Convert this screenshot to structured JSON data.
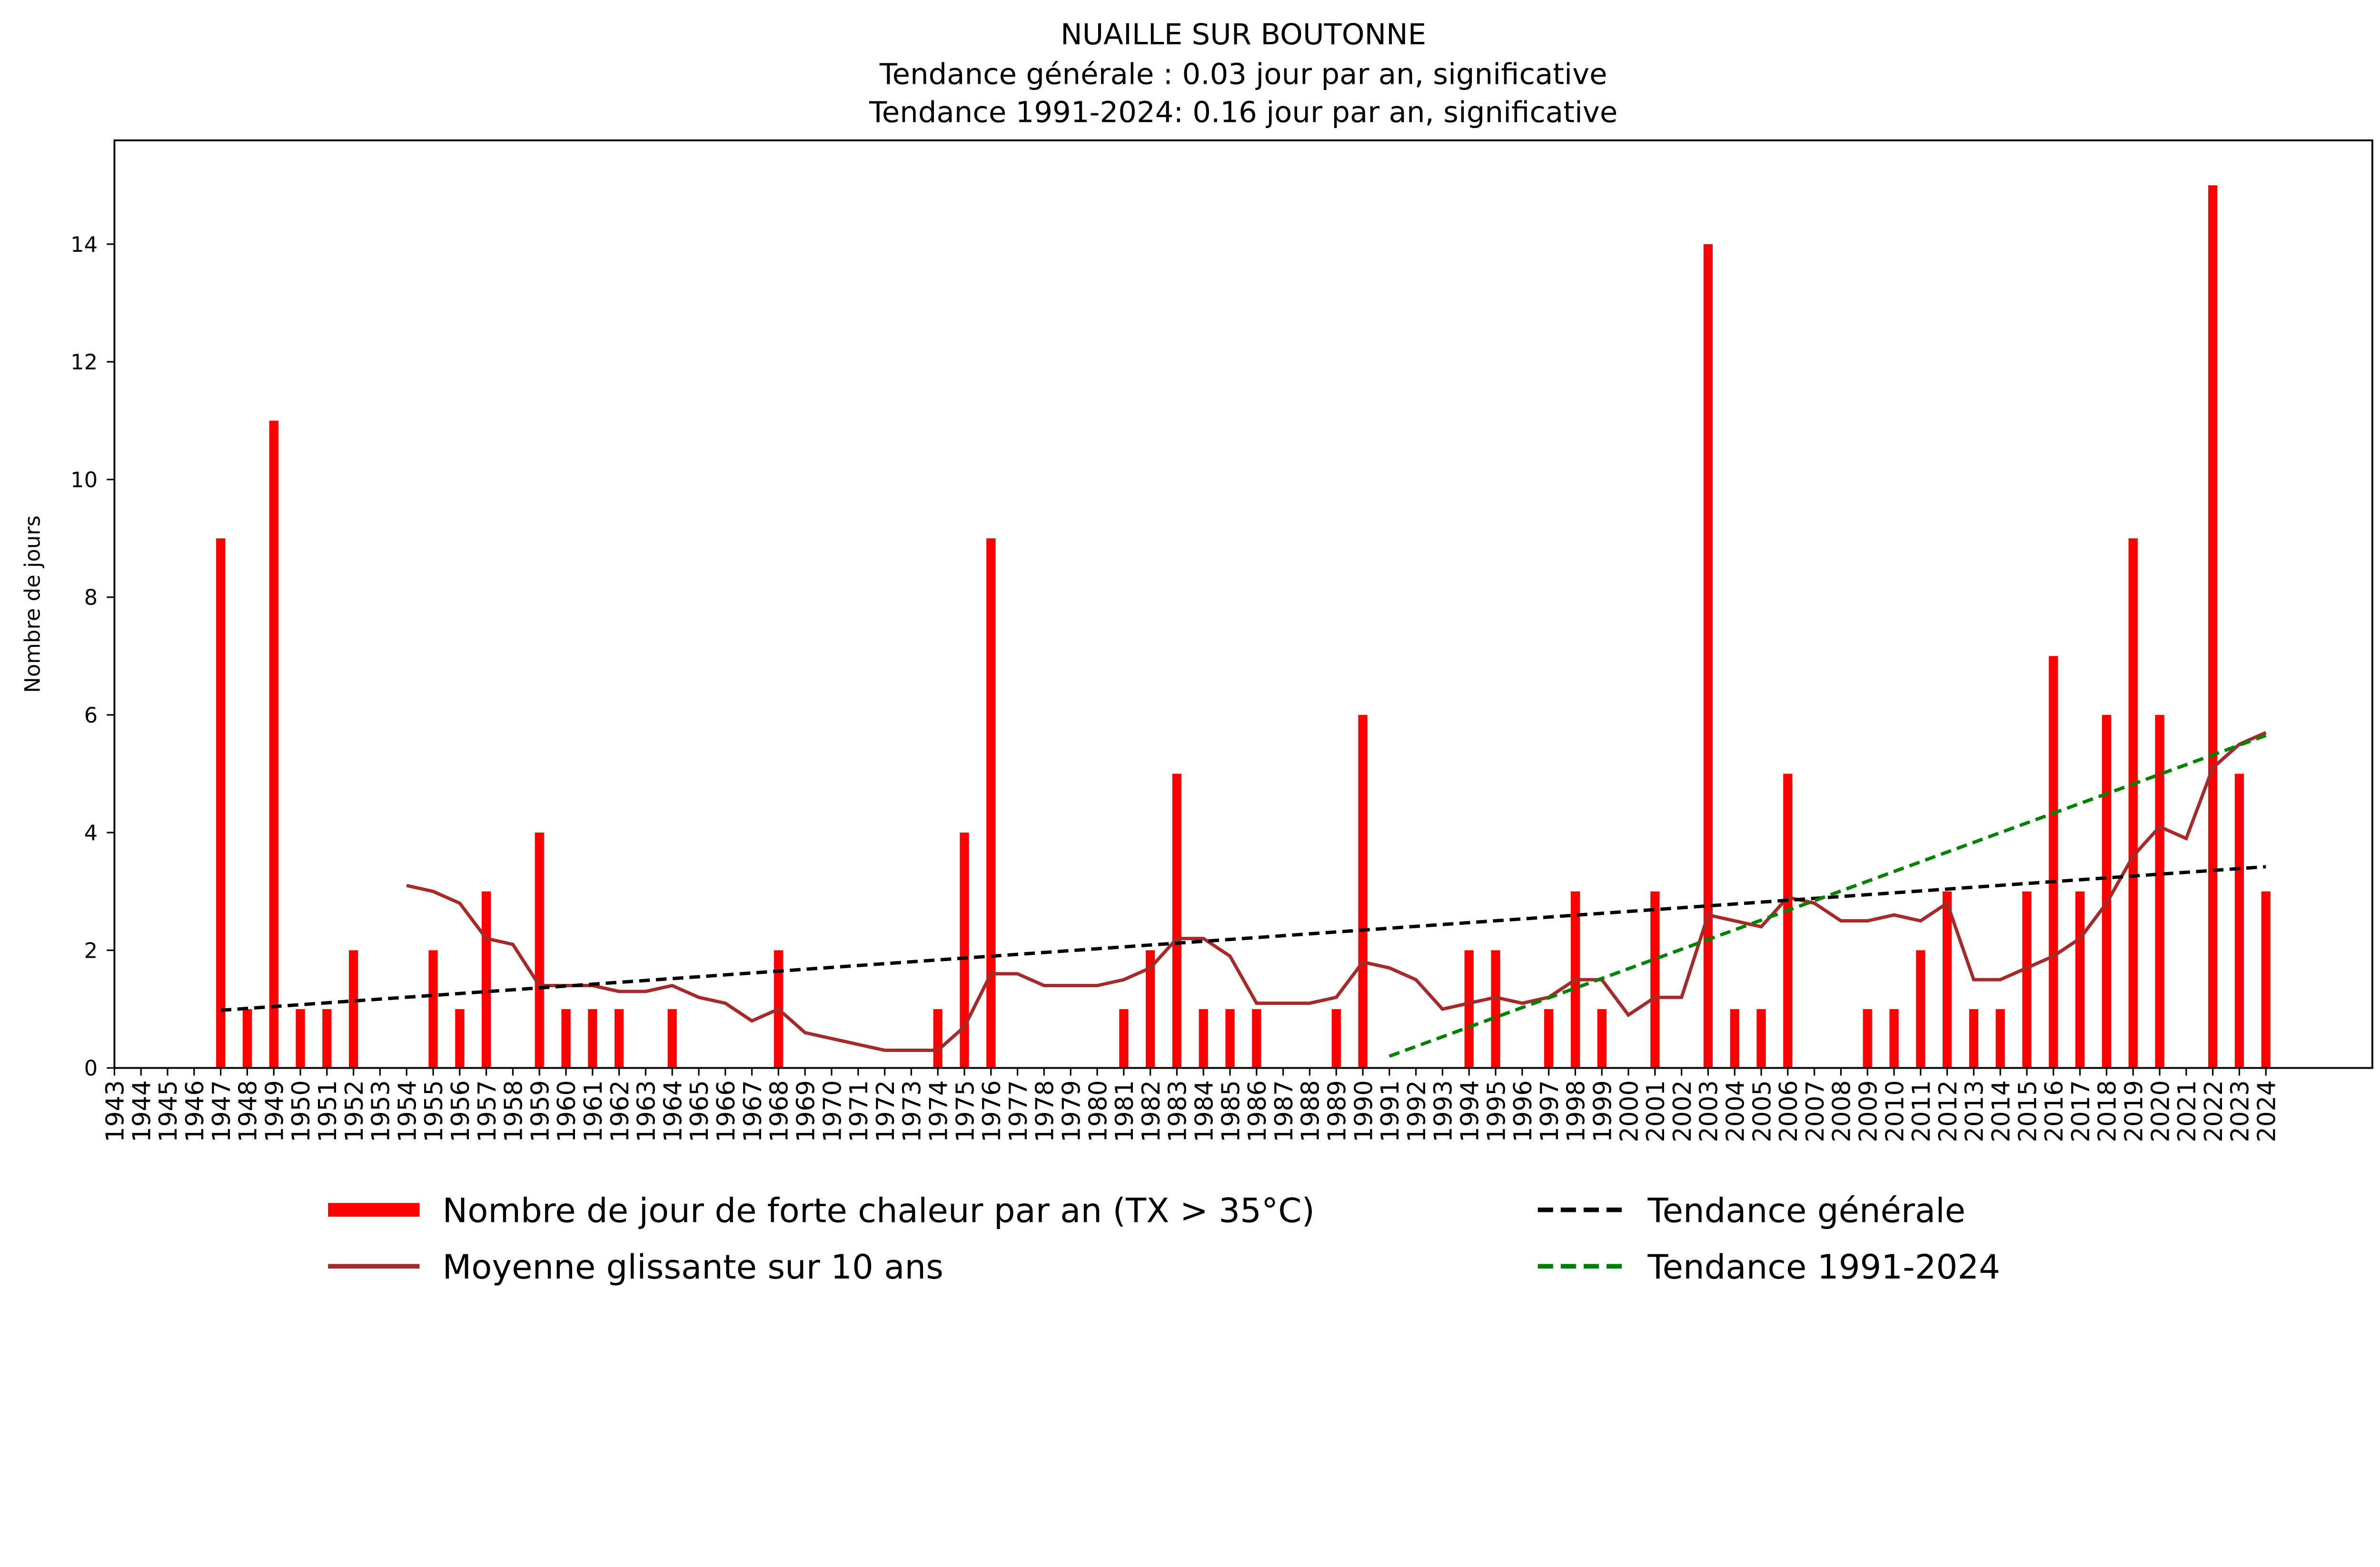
{
  "chart_data": {
    "type": "bar",
    "title_lines": [
      "NUAILLE SUR BOUTONNE",
      "Tendance générale : 0.03 jour par an, significative",
      "Tendance 1991-2024: 0.16 jour par an, significative"
    ],
    "xlabel": "",
    "ylabel": "Nombre de jours",
    "ylim": [
      0,
      15.7
    ],
    "yticks": [
      0,
      2,
      4,
      6,
      8,
      10,
      12,
      14
    ],
    "x_start": 1943,
    "x_end": 2024,
    "values": {
      "1947": 9,
      "1948": 1,
      "1949": 11,
      "1950": 1,
      "1951": 1,
      "1952": 2,
      "1955": 2,
      "1956": 1,
      "1957": 3,
      "1959": 4,
      "1960": 1,
      "1961": 1,
      "1962": 1,
      "1964": 1,
      "1968": 2,
      "1974": 1,
      "1975": 4,
      "1976": 9,
      "1981": 1,
      "1982": 2,
      "1983": 5,
      "1984": 1,
      "1985": 1,
      "1986": 1,
      "1989": 1,
      "1990": 6,
      "1994": 2,
      "1995": 2,
      "1997": 1,
      "1998": 3,
      "1999": 1,
      "2001": 3,
      "2003": 14,
      "2004": 1,
      "2005": 1,
      "2006": 5,
      "2009": 1,
      "2010": 1,
      "2011": 2,
      "2012": 3,
      "2013": 1,
      "2014": 1,
      "2015": 3,
      "2016": 7,
      "2017": 3,
      "2018": 6,
      "2019": 9,
      "2020": 6,
      "2022": 15,
      "2023": 5,
      "2024": 3
    },
    "moving_average": {
      "start_year": 1954,
      "values": [
        3.1,
        3.0,
        2.8,
        2.2,
        2.1,
        1.4,
        1.4,
        1.4,
        1.3,
        1.3,
        1.4,
        1.2,
        1.1,
        0.8,
        1.0,
        0.6,
        0.5,
        0.4,
        0.3,
        0.3,
        0.3,
        0.7,
        1.6,
        1.6,
        1.4,
        1.4,
        1.4,
        1.5,
        1.7,
        2.2,
        2.2,
        1.9,
        1.1,
        1.1,
        1.1,
        1.2,
        1.8,
        1.7,
        1.5,
        1.0,
        1.1,
        1.2,
        1.1,
        1.2,
        1.5,
        1.5,
        0.9,
        1.2,
        1.2,
        2.6,
        2.5,
        2.4,
        2.9,
        2.8,
        2.5,
        2.5,
        2.6,
        2.5,
        2.8,
        1.5,
        1.5,
        1.7,
        1.9,
        2.2,
        2.8,
        3.6,
        4.1,
        3.9,
        5.1,
        5.5,
        5.7
      ]
    },
    "trend_general": {
      "x": [
        1947,
        2024
      ],
      "y": [
        0.98,
        3.42
      ]
    },
    "trend_recent": {
      "x": [
        1991,
        2024
      ],
      "y": [
        0.2,
        5.65
      ]
    },
    "legend": {
      "placement": "bottom",
      "bars": "Nombre de jour de forte chaleur par an (TX > 35°C)",
      "moving_average": "Moyenne glissante sur 10 ans",
      "trend_general": "Tendance générale",
      "trend_recent": "Tendance 1991-2024"
    },
    "colors": {
      "bars": "#ff0000",
      "moving_average": "#a52a2a",
      "trend_general": "#000000",
      "trend_recent": "#008000"
    }
  }
}
